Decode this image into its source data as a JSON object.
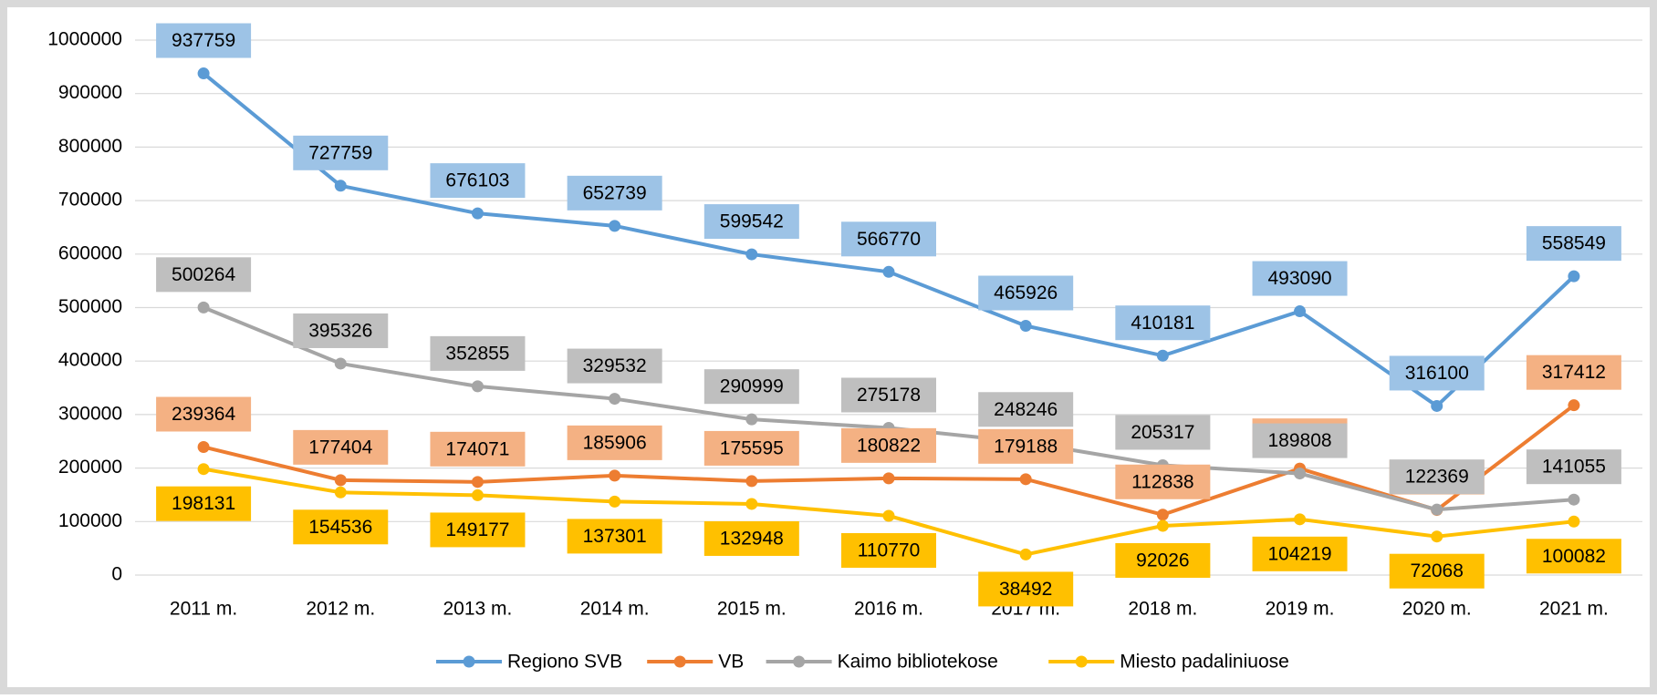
{
  "chart_data": {
    "type": "line",
    "categories": [
      "2011 m.",
      "2012 m.",
      "2013 m.",
      "2014 m.",
      "2015 m.",
      "2016 m.",
      "2017 m.",
      "2018 m.",
      "2019 m.",
      "2020 m.",
      "2021 m."
    ],
    "series": [
      {
        "name": "Regiono SVB",
        "color": "#5b9bd5",
        "label_color": "#9dc3e6",
        "values": [
          937759,
          727759,
          676103,
          652739,
          599542,
          566770,
          465926,
          410181,
          493090,
          316100,
          558549
        ]
      },
      {
        "name": "VB",
        "color": "#ed7d31",
        "label_color": "#f4b183",
        "values": [
          239364,
          177404,
          174071,
          185906,
          175595,
          180822,
          179188,
          112838,
          199063,
          121663,
          317412
        ]
      },
      {
        "name": "Kaimo bibliotekose",
        "color": "#a5a5a5",
        "label_color": "#bfbfbf",
        "values": [
          500264,
          395326,
          352855,
          329532,
          290999,
          275178,
          248246,
          205317,
          189808,
          122369,
          141055
        ]
      },
      {
        "name": "Miesto padaliniuose",
        "color": "#ffc000",
        "label_color": "#ffc000",
        "values": [
          198131,
          154536,
          149177,
          137301,
          132948,
          110770,
          38492,
          92026,
          104219,
          72068,
          100082
        ]
      }
    ],
    "ylim": [
      0,
      1000000
    ],
    "yticks": [
      0,
      100000,
      200000,
      300000,
      400000,
      500000,
      600000,
      700000,
      800000,
      900000,
      1000000
    ],
    "grid": true,
    "legend": "bottom"
  }
}
